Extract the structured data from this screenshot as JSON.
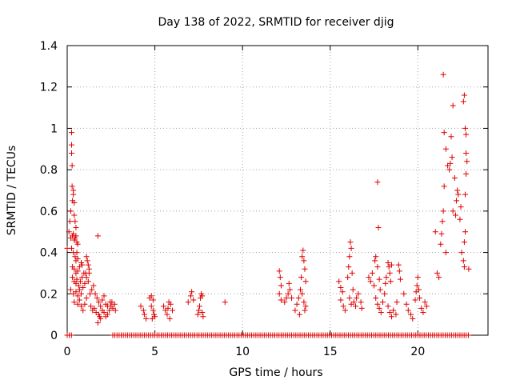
{
  "chart_data": {
    "type": "scatter",
    "title": "Day 138 of 2022, SRMTID for receiver djig",
    "xlabel": "GPS time / hours",
    "ylabel": "SRMTID / TECUs",
    "xlim": [
      0,
      24
    ],
    "ylim": [
      0,
      1.4
    ],
    "xticks": [
      0,
      5,
      10,
      15,
      20
    ],
    "xtick_labels": [
      "0",
      "5",
      "10",
      "15",
      "20"
    ],
    "yticks": [
      0,
      0.2,
      0.4,
      0.6,
      0.8,
      1.0,
      1.2,
      1.4
    ],
    "ytick_labels": [
      "0",
      "0.2",
      "0.4",
      "0.6",
      "0.8",
      "1",
      "1.2",
      "1.4"
    ],
    "grid": true,
    "marker": "+",
    "color": "#dd0000",
    "series": [
      {
        "name": "SRMTID",
        "points": [
          [
            0.0,
            0.42
          ],
          [
            0.1,
            0.5
          ],
          [
            0.15,
            0.55
          ],
          [
            0.2,
            0.6
          ],
          [
            0.25,
            0.98
          ],
          [
            0.25,
            0.92
          ],
          [
            0.25,
            0.88
          ],
          [
            0.28,
            0.82
          ],
          [
            0.28,
            0.72
          ],
          [
            0.3,
            0.65
          ],
          [
            0.35,
            0.7
          ],
          [
            0.35,
            0.68
          ],
          [
            0.4,
            0.64
          ],
          [
            0.4,
            0.58
          ],
          [
            0.45,
            0.55
          ],
          [
            0.5,
            0.52
          ],
          [
            0.2,
            0.47
          ],
          [
            0.3,
            0.48
          ],
          [
            0.35,
            0.49
          ],
          [
            0.4,
            0.46
          ],
          [
            0.45,
            0.47
          ],
          [
            0.5,
            0.48
          ],
          [
            0.55,
            0.45
          ],
          [
            0.6,
            0.44
          ],
          [
            0.25,
            0.42
          ],
          [
            0.35,
            0.4
          ],
          [
            0.45,
            0.38
          ],
          [
            0.5,
            0.36
          ],
          [
            0.55,
            0.4
          ],
          [
            0.6,
            0.37
          ],
          [
            0.3,
            0.33
          ],
          [
            0.4,
            0.32
          ],
          [
            0.5,
            0.3
          ],
          [
            0.6,
            0.31
          ],
          [
            0.7,
            0.33
          ],
          [
            0.8,
            0.35
          ],
          [
            0.85,
            0.34
          ],
          [
            0.3,
            0.28
          ],
          [
            0.4,
            0.26
          ],
          [
            0.5,
            0.25
          ],
          [
            0.55,
            0.27
          ],
          [
            0.65,
            0.24
          ],
          [
            0.75,
            0.26
          ],
          [
            0.85,
            0.28
          ],
          [
            0.95,
            0.3
          ],
          [
            0.2,
            0.22
          ],
          [
            0.35,
            0.2
          ],
          [
            0.5,
            0.21
          ],
          [
            0.6,
            0.19
          ],
          [
            0.7,
            0.22
          ],
          [
            0.8,
            0.2
          ],
          [
            0.9,
            0.23
          ],
          [
            1.0,
            0.25
          ],
          [
            1.1,
            0.38
          ],
          [
            1.15,
            0.36
          ],
          [
            1.2,
            0.34
          ],
          [
            1.25,
            0.32
          ],
          [
            1.05,
            0.3
          ],
          [
            1.1,
            0.28
          ],
          [
            1.2,
            0.26
          ],
          [
            1.25,
            0.3
          ],
          [
            0.4,
            0.16
          ],
          [
            0.6,
            0.15
          ],
          [
            0.7,
            0.17
          ],
          [
            0.8,
            0.14
          ],
          [
            0.9,
            0.12
          ],
          [
            1.0,
            0.15
          ],
          [
            1.1,
            0.18
          ],
          [
            1.3,
            0.2
          ],
          [
            1.4,
            0.22
          ],
          [
            1.5,
            0.24
          ],
          [
            1.6,
            0.2
          ],
          [
            1.7,
            0.18
          ],
          [
            1.75,
            0.48
          ],
          [
            1.8,
            0.16
          ],
          [
            1.35,
            0.14
          ],
          [
            1.45,
            0.12
          ],
          [
            1.55,
            0.13
          ],
          [
            1.65,
            0.11
          ],
          [
            1.8,
            0.1
          ],
          [
            1.9,
            0.08
          ],
          [
            1.75,
            0.06
          ],
          [
            1.85,
            0.09
          ],
          [
            1.9,
            0.14
          ],
          [
            2.0,
            0.17
          ],
          [
            2.1,
            0.19
          ],
          [
            2.2,
            0.15
          ],
          [
            2.0,
            0.12
          ],
          [
            2.1,
            0.11
          ],
          [
            2.2,
            0.09
          ],
          [
            2.3,
            0.1
          ],
          [
            2.4,
            0.12
          ],
          [
            2.5,
            0.14
          ],
          [
            2.55,
            0.16
          ],
          [
            2.6,
            0.13
          ],
          [
            2.7,
            0.15
          ],
          [
            2.75,
            0.12
          ],
          [
            2.3,
            0.14
          ],
          [
            2.45,
            0.16
          ],
          [
            4.2,
            0.14
          ],
          [
            4.35,
            0.12
          ],
          [
            4.4,
            0.1
          ],
          [
            4.5,
            0.08
          ],
          [
            4.7,
            0.18
          ],
          [
            4.8,
            0.19
          ],
          [
            4.9,
            0.17
          ],
          [
            4.8,
            0.14
          ],
          [
            4.9,
            0.12
          ],
          [
            4.95,
            0.1
          ],
          [
            4.85,
            0.08
          ],
          [
            5.0,
            0.09
          ],
          [
            5.5,
            0.14
          ],
          [
            5.6,
            0.12
          ],
          [
            5.7,
            0.1
          ],
          [
            5.75,
            0.13
          ],
          [
            5.8,
            0.16
          ],
          [
            5.9,
            0.15
          ],
          [
            6.0,
            0.12
          ],
          [
            5.85,
            0.08
          ],
          [
            6.9,
            0.16
          ],
          [
            7.05,
            0.19
          ],
          [
            7.1,
            0.21
          ],
          [
            7.2,
            0.17
          ],
          [
            7.45,
            0.1
          ],
          [
            7.5,
            0.12
          ],
          [
            7.55,
            0.14
          ],
          [
            7.6,
            0.18
          ],
          [
            7.65,
            0.2
          ],
          [
            7.7,
            0.19
          ],
          [
            7.7,
            0.11
          ],
          [
            7.75,
            0.09
          ],
          [
            9.0,
            0.16
          ],
          [
            12.1,
            0.31
          ],
          [
            12.15,
            0.28
          ],
          [
            12.2,
            0.24
          ],
          [
            12.1,
            0.2
          ],
          [
            12.2,
            0.17
          ],
          [
            12.4,
            0.16
          ],
          [
            12.5,
            0.18
          ],
          [
            12.6,
            0.2
          ],
          [
            12.7,
            0.22
          ],
          [
            12.65,
            0.25
          ],
          [
            12.8,
            0.18
          ],
          [
            13.0,
            0.12
          ],
          [
            13.1,
            0.15
          ],
          [
            13.2,
            0.18
          ],
          [
            13.3,
            0.22
          ],
          [
            13.35,
            0.28
          ],
          [
            13.4,
            0.38
          ],
          [
            13.45,
            0.41
          ],
          [
            13.5,
            0.36
          ],
          [
            13.55,
            0.32
          ],
          [
            13.6,
            0.26
          ],
          [
            13.4,
            0.2
          ],
          [
            13.5,
            0.16
          ],
          [
            13.55,
            0.12
          ],
          [
            13.6,
            0.14
          ],
          [
            13.25,
            0.1
          ],
          [
            15.5,
            0.26
          ],
          [
            15.6,
            0.23
          ],
          [
            15.7,
            0.21
          ],
          [
            15.6,
            0.17
          ],
          [
            15.75,
            0.14
          ],
          [
            15.85,
            0.12
          ],
          [
            16.0,
            0.28
          ],
          [
            16.05,
            0.33
          ],
          [
            16.1,
            0.38
          ],
          [
            16.15,
            0.45
          ],
          [
            16.2,
            0.42
          ],
          [
            16.25,
            0.3
          ],
          [
            16.3,
            0.22
          ],
          [
            16.1,
            0.18
          ],
          [
            16.2,
            0.15
          ],
          [
            16.35,
            0.16
          ],
          [
            16.45,
            0.14
          ],
          [
            16.5,
            0.18
          ],
          [
            16.6,
            0.2
          ],
          [
            16.75,
            0.16
          ],
          [
            16.8,
            0.13
          ],
          [
            17.2,
            0.28
          ],
          [
            17.3,
            0.26
          ],
          [
            17.4,
            0.3
          ],
          [
            17.5,
            0.24
          ],
          [
            17.55,
            0.36
          ],
          [
            17.6,
            0.38
          ],
          [
            17.7,
            0.33
          ],
          [
            17.7,
            0.74
          ],
          [
            17.75,
            0.52
          ],
          [
            17.8,
            0.27
          ],
          [
            17.85,
            0.22
          ],
          [
            17.6,
            0.18
          ],
          [
            17.7,
            0.15
          ],
          [
            17.8,
            0.13
          ],
          [
            17.9,
            0.11
          ],
          [
            18.0,
            0.16
          ],
          [
            18.1,
            0.2
          ],
          [
            18.15,
            0.25
          ],
          [
            18.2,
            0.28
          ],
          [
            18.3,
            0.35
          ],
          [
            18.35,
            0.33
          ],
          [
            18.4,
            0.3
          ],
          [
            18.45,
            0.26
          ],
          [
            18.5,
            0.34
          ],
          [
            18.3,
            0.14
          ],
          [
            18.4,
            0.11
          ],
          [
            18.5,
            0.09
          ],
          [
            18.6,
            0.12
          ],
          [
            18.75,
            0.1
          ],
          [
            18.8,
            0.16
          ],
          [
            18.9,
            0.34
          ],
          [
            18.95,
            0.31
          ],
          [
            19.0,
            0.27
          ],
          [
            19.2,
            0.2
          ],
          [
            19.35,
            0.15
          ],
          [
            19.45,
            0.12
          ],
          [
            19.6,
            0.1
          ],
          [
            19.7,
            0.08
          ],
          [
            19.85,
            0.17
          ],
          [
            19.9,
            0.21
          ],
          [
            19.95,
            0.24
          ],
          [
            20.0,
            0.28
          ],
          [
            20.05,
            0.22
          ],
          [
            20.1,
            0.18
          ],
          [
            20.2,
            0.13
          ],
          [
            20.3,
            0.11
          ],
          [
            20.4,
            0.16
          ],
          [
            20.5,
            0.14
          ],
          [
            21.1,
            0.3
          ],
          [
            21.2,
            0.28
          ],
          [
            21.3,
            0.44
          ],
          [
            21.35,
            0.49
          ],
          [
            21.4,
            0.55
          ],
          [
            21.45,
            0.6
          ],
          [
            21.5,
            0.72
          ],
          [
            21.5,
            0.98
          ],
          [
            21.6,
            0.9
          ],
          [
            21.7,
            0.82
          ],
          [
            21.8,
            0.8
          ],
          [
            21.9,
            0.96
          ],
          [
            22.0,
            1.11
          ],
          [
            21.95,
            0.86
          ],
          [
            22.0,
            0.6
          ],
          [
            21.6,
            0.4
          ],
          [
            22.1,
            0.76
          ],
          [
            22.15,
            0.58
          ],
          [
            22.2,
            0.65
          ],
          [
            22.25,
            0.7
          ],
          [
            22.3,
            0.68
          ],
          [
            22.4,
            0.56
          ],
          [
            22.45,
            0.62
          ],
          [
            22.5,
            0.4
          ],
          [
            22.6,
            0.36
          ],
          [
            22.65,
            0.45
          ],
          [
            22.7,
            0.5
          ],
          [
            22.6,
            1.13
          ],
          [
            22.65,
            1.16
          ],
          [
            22.7,
            1.0
          ],
          [
            22.75,
            0.97
          ],
          [
            22.75,
            0.88
          ],
          [
            22.8,
            0.84
          ],
          [
            22.75,
            0.78
          ],
          [
            22.7,
            0.68
          ],
          [
            22.65,
            0.33
          ],
          [
            21.45,
            1.26
          ],
          [
            21.85,
            0.83
          ],
          [
            21.0,
            0.5
          ],
          [
            22.9,
            0.32
          ]
        ]
      }
    ],
    "zero_baseline_segments": [
      [
        0.0,
        0.3
      ],
      [
        2.6,
        22.9
      ]
    ]
  }
}
